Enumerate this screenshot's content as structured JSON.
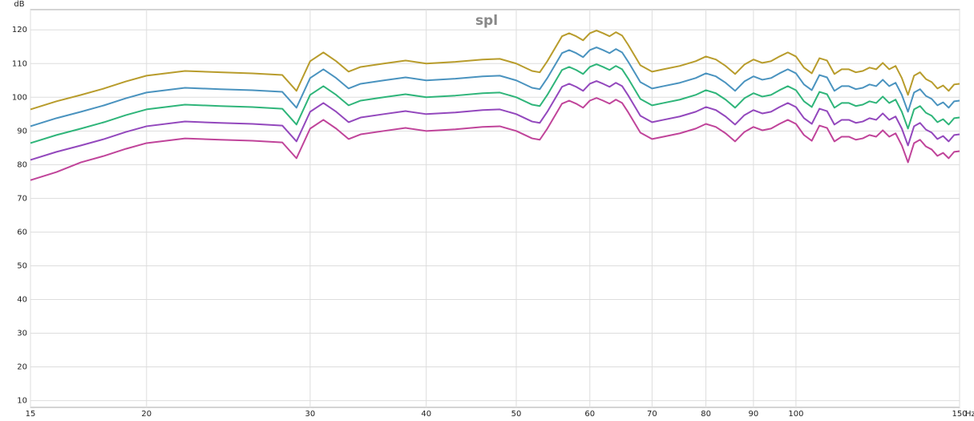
{
  "chart_data": {
    "type": "line",
    "title": "spl",
    "y_unit": "dB",
    "x_unit": "Hz",
    "xscale": "log",
    "grid": true,
    "xlim": [
      15,
      150
    ],
    "ylim": [
      8,
      126
    ],
    "xticks": [
      15,
      20,
      30,
      40,
      50,
      60,
      70,
      80,
      90,
      100,
      150
    ],
    "yticks": [
      10,
      20,
      30,
      40,
      50,
      60,
      70,
      80,
      90,
      100,
      110,
      120
    ],
    "x": [
      15,
      16,
      17,
      18,
      19,
      20,
      22,
      24,
      26,
      28,
      29,
      30,
      31,
      32,
      33,
      34,
      36,
      38,
      40,
      43,
      46,
      48,
      50,
      52,
      53,
      54,
      56,
      57,
      58,
      59,
      60,
      61,
      62,
      63,
      64,
      65,
      66,
      68,
      70,
      72,
      75,
      78,
      80,
      82,
      84,
      86,
      88,
      90,
      92,
      94,
      96,
      98,
      100,
      102,
      104,
      106,
      108,
      110,
      112,
      114,
      116,
      118,
      120,
      122,
      124,
      126,
      128,
      130,
      132,
      134,
      136,
      138,
      140,
      142,
      144,
      146,
      148,
      150
    ],
    "series": [
      {
        "color": "#b89c2c",
        "values": [
          96.4,
          98.8,
          100.7,
          102.6,
          104.7,
          106.4,
          107.8,
          107.4,
          107.1,
          106.6,
          101.9,
          110.7,
          113.3,
          110.7,
          107.6,
          109.0,
          110.0,
          110.9,
          110.0,
          110.5,
          111.2,
          111.4,
          110.0,
          107.8,
          107.4,
          110.7,
          118.1,
          119.0,
          118.1,
          116.9,
          119.0,
          119.8,
          119.0,
          118.1,
          119.3,
          118.3,
          115.5,
          109.5,
          107.6,
          108.3,
          109.3,
          110.7,
          112.1,
          111.2,
          109.3,
          106.9,
          109.7,
          111.2,
          110.2,
          110.7,
          112.1,
          113.3,
          112.1,
          108.8,
          107.1,
          111.6,
          110.9,
          106.9,
          108.3,
          108.3,
          107.4,
          107.8,
          108.8,
          108.3,
          110.2,
          108.3,
          109.3,
          105.7,
          100.7,
          106.4,
          107.4,
          105.4,
          104.5,
          102.6,
          103.5,
          101.9,
          103.8,
          104.0
        ]
      },
      {
        "color": "#4a93bf",
        "values": [
          91.4,
          93.8,
          95.7,
          97.6,
          99.7,
          101.4,
          102.8,
          102.4,
          102.1,
          101.6,
          96.9,
          105.7,
          108.3,
          105.7,
          102.6,
          104.0,
          105.0,
          105.9,
          105.0,
          105.5,
          106.2,
          106.4,
          105.0,
          102.8,
          102.4,
          105.7,
          113.1,
          114.0,
          113.1,
          111.9,
          114.0,
          114.8,
          114.0,
          113.1,
          114.3,
          113.3,
          110.5,
          104.5,
          102.6,
          103.3,
          104.3,
          105.7,
          107.1,
          106.2,
          104.3,
          101.9,
          104.7,
          106.2,
          105.2,
          105.7,
          107.1,
          108.3,
          107.1,
          103.8,
          102.1,
          106.6,
          105.9,
          101.9,
          103.3,
          103.3,
          102.4,
          102.8,
          103.8,
          103.3,
          105.2,
          103.3,
          104.3,
          100.7,
          95.7,
          101.4,
          102.4,
          100.4,
          99.5,
          97.6,
          98.5,
          96.9,
          98.8,
          99.0
        ]
      },
      {
        "color": "#2fb57a",
        "values": [
          86.4,
          88.8,
          90.7,
          92.6,
          94.7,
          96.4,
          97.8,
          97.4,
          97.1,
          96.6,
          91.9,
          100.7,
          103.3,
          100.7,
          97.6,
          99.0,
          100.0,
          100.9,
          100.0,
          100.5,
          101.2,
          101.4,
          100.0,
          97.8,
          97.4,
          100.7,
          108.1,
          109.0,
          108.1,
          106.9,
          109.0,
          109.8,
          109.0,
          108.1,
          109.3,
          108.3,
          105.5,
          99.5,
          97.6,
          98.3,
          99.3,
          100.7,
          102.1,
          101.2,
          99.3,
          96.9,
          99.7,
          101.2,
          100.2,
          100.7,
          102.1,
          103.3,
          102.1,
          98.8,
          97.1,
          101.6,
          100.9,
          96.9,
          98.3,
          98.3,
          97.4,
          97.8,
          98.8,
          98.3,
          100.2,
          98.3,
          99.3,
          95.7,
          90.7,
          96.4,
          97.4,
          95.4,
          94.5,
          92.6,
          93.5,
          91.9,
          93.8,
          94.0
        ]
      },
      {
        "color": "#9348bd",
        "values": [
          81.4,
          83.8,
          85.7,
          87.6,
          89.7,
          91.4,
          92.8,
          92.4,
          92.1,
          91.6,
          86.9,
          95.7,
          98.3,
          95.7,
          92.6,
          94.0,
          95.0,
          95.9,
          95.0,
          95.5,
          96.2,
          96.4,
          95.0,
          92.8,
          92.4,
          95.7,
          103.1,
          104.0,
          103.1,
          101.9,
          104.0,
          104.8,
          104.0,
          103.1,
          104.3,
          103.3,
          100.5,
          94.5,
          92.6,
          93.3,
          94.3,
          95.7,
          97.1,
          96.2,
          94.3,
          91.9,
          94.7,
          96.2,
          95.2,
          95.7,
          97.1,
          98.3,
          97.1,
          93.8,
          92.1,
          96.6,
          95.9,
          91.9,
          93.3,
          93.3,
          92.4,
          92.8,
          93.8,
          93.3,
          95.2,
          93.3,
          94.3,
          90.7,
          85.7,
          91.4,
          92.4,
          90.4,
          89.5,
          87.6,
          88.5,
          86.9,
          88.8,
          89.0
        ]
      },
      {
        "color": "#c0449a",
        "values": [
          75.4,
          77.8,
          80.7,
          82.6,
          84.7,
          86.4,
          87.8,
          87.4,
          87.1,
          86.6,
          81.9,
          90.7,
          93.3,
          90.7,
          87.6,
          89.0,
          90.0,
          90.9,
          90.0,
          90.5,
          91.2,
          91.4,
          90.0,
          87.8,
          87.4,
          90.7,
          98.1,
          99.0,
          98.1,
          96.9,
          99.0,
          99.8,
          99.0,
          98.1,
          99.3,
          98.3,
          95.5,
          89.5,
          87.6,
          88.3,
          89.3,
          90.7,
          92.1,
          91.2,
          89.3,
          86.9,
          89.7,
          91.2,
          90.2,
          90.7,
          92.1,
          93.3,
          92.1,
          88.8,
          87.1,
          91.6,
          90.9,
          86.9,
          88.3,
          88.3,
          87.4,
          87.8,
          88.8,
          88.3,
          90.2,
          88.3,
          89.3,
          85.7,
          80.7,
          86.4,
          87.4,
          85.4,
          84.5,
          82.6,
          83.5,
          81.9,
          83.8,
          84.0
        ]
      }
    ]
  }
}
